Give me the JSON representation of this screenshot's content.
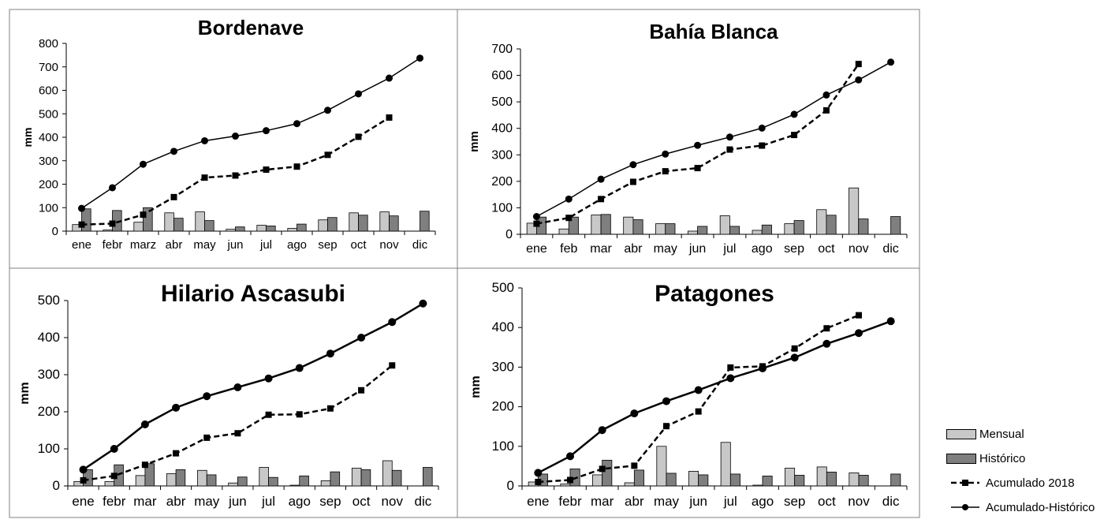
{
  "legend": {
    "mensual": "Mensual",
    "historico": "Histórico",
    "acum2018": "Acumulado 2018",
    "acumhist": "Acumulado-Histórico"
  },
  "colors": {
    "mensual": "#c8c8c8",
    "historico": "#7f7f7f",
    "line": "#000000",
    "border": "#808080"
  },
  "chart_data": [
    {
      "type": "bar+line",
      "title": "Bordenave",
      "ylabel": "mm",
      "ylim": [
        0,
        800
      ],
      "yticks": [
        0,
        100,
        200,
        300,
        400,
        500,
        600,
        700,
        800
      ],
      "categories": [
        "ene",
        "febr",
        "marz",
        "abr",
        "may",
        "jun",
        "jul",
        "ago",
        "sep",
        "oct",
        "nov",
        "dic"
      ],
      "series": [
        {
          "name": "Mensual",
          "kind": "bar",
          "values": [
            28,
            5,
            38,
            78,
            82,
            8,
            25,
            12,
            48,
            78,
            82,
            null
          ]
        },
        {
          "name": "Histórico",
          "kind": "bar",
          "values": [
            95,
            88,
            100,
            55,
            45,
            18,
            22,
            30,
            58,
            68,
            65,
            85
          ]
        },
        {
          "name": "Acumulado 2018",
          "kind": "line-dashed",
          "values": [
            28,
            32,
            70,
            145,
            228,
            237,
            262,
            275,
            325,
            402,
            484,
            null
          ]
        },
        {
          "name": "Acumulado-Histórico",
          "kind": "line-solid",
          "values": [
            97,
            185,
            285,
            340,
            385,
            405,
            428,
            458,
            515,
            585,
            652,
            737
          ]
        }
      ]
    },
    {
      "type": "bar+line",
      "title": "Bahía Blanca",
      "ylabel": "mm",
      "ylim": [
        0,
        700
      ],
      "yticks": [
        0,
        100,
        200,
        300,
        400,
        500,
        600,
        700
      ],
      "categories": [
        "ene",
        "feb",
        "mar",
        "abr",
        "may",
        "jun",
        "jul",
        "ago",
        "sep",
        "oct",
        "nov",
        "dic"
      ],
      "series": [
        {
          "name": "Mensual",
          "kind": "bar",
          "values": [
            42,
            20,
            73,
            65,
            40,
            12,
            70,
            15,
            40,
            93,
            175,
            null
          ]
        },
        {
          "name": "Histórico",
          "kind": "bar",
          "values": [
            65,
            65,
            75,
            55,
            40,
            30,
            30,
            35,
            52,
            72,
            58,
            67
          ]
        },
        {
          "name": "Acumulado 2018",
          "kind": "line-dashed",
          "values": [
            40,
            62,
            133,
            198,
            238,
            250,
            320,
            335,
            375,
            468,
            643,
            null
          ]
        },
        {
          "name": "Acumulado-Histórico",
          "kind": "line-solid",
          "values": [
            67,
            133,
            208,
            263,
            303,
            336,
            367,
            401,
            453,
            526,
            583,
            650
          ]
        }
      ]
    },
    {
      "type": "bar+line",
      "title": "Hilario Ascasubi",
      "ylabel": "mm",
      "ylim": [
        0,
        500
      ],
      "yticks": [
        0,
        100,
        200,
        300,
        400,
        500
      ],
      "categories": [
        "ene",
        "febr",
        "mar",
        "abr",
        "may",
        "jun",
        "jul",
        "ago",
        "sep",
        "oct",
        "nov",
        "dic"
      ],
      "series": [
        {
          "name": "Mensual",
          "kind": "bar",
          "values": [
            12,
            12,
            28,
            33,
            42,
            8,
            50,
            2,
            14,
            48,
            68,
            null
          ]
        },
        {
          "name": "Histórico",
          "kind": "bar",
          "values": [
            44,
            57,
            60,
            44,
            30,
            24,
            23,
            27,
            38,
            44,
            42,
            50
          ]
        },
        {
          "name": "Acumulado 2018",
          "kind": "line-dashed",
          "values": [
            15,
            27,
            57,
            88,
            130,
            142,
            192,
            193,
            209,
            258,
            325,
            null
          ]
        },
        {
          "name": "Acumulado-Histórico",
          "kind": "line-solid",
          "values": [
            44,
            100,
            166,
            211,
            242,
            266,
            290,
            318,
            357,
            400,
            442,
            492
          ]
        }
      ]
    },
    {
      "type": "bar+line",
      "title": "Patagones",
      "ylabel": "mm",
      "ylim": [
        0,
        500
      ],
      "yticks": [
        0,
        100,
        200,
        300,
        400,
        500
      ],
      "categories": [
        "ene",
        "febr",
        "mar",
        "abr",
        "may",
        "jun",
        "jul",
        "ago",
        "sep",
        "oct",
        "nov",
        "dic"
      ],
      "series": [
        {
          "name": "Mensual",
          "kind": "bar",
          "values": [
            10,
            5,
            28,
            8,
            100,
            37,
            110,
            2,
            45,
            48,
            33,
            null
          ]
        },
        {
          "name": "Histórico",
          "kind": "bar",
          "values": [
            30,
            43,
            65,
            40,
            32,
            28,
            30,
            25,
            27,
            35,
            27,
            30
          ]
        },
        {
          "name": "Acumulado 2018",
          "kind": "line-dashed",
          "values": [
            10,
            15,
            43,
            51,
            151,
            188,
            299,
            302,
            347,
            398,
            431,
            null
          ]
        },
        {
          "name": "Acumulado-Histórico",
          "kind": "line-solid",
          "values": [
            33,
            75,
            141,
            183,
            214,
            242,
            272,
            297,
            324,
            359,
            386,
            416
          ]
        }
      ]
    }
  ]
}
